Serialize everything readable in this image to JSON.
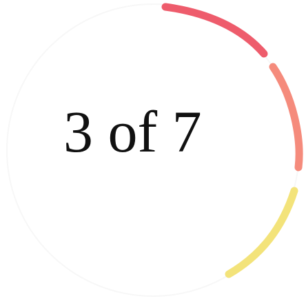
{
  "progress": {
    "label": "3 of 7",
    "current_step": 3,
    "total_steps": 7,
    "visible_segments": [
      {
        "name": "segment-1",
        "color": "#ee5c6c"
      },
      {
        "name": "segment-2",
        "color": "#f58b7c"
      },
      {
        "name": "segment-3",
        "color": "#f3e37a"
      }
    ]
  }
}
